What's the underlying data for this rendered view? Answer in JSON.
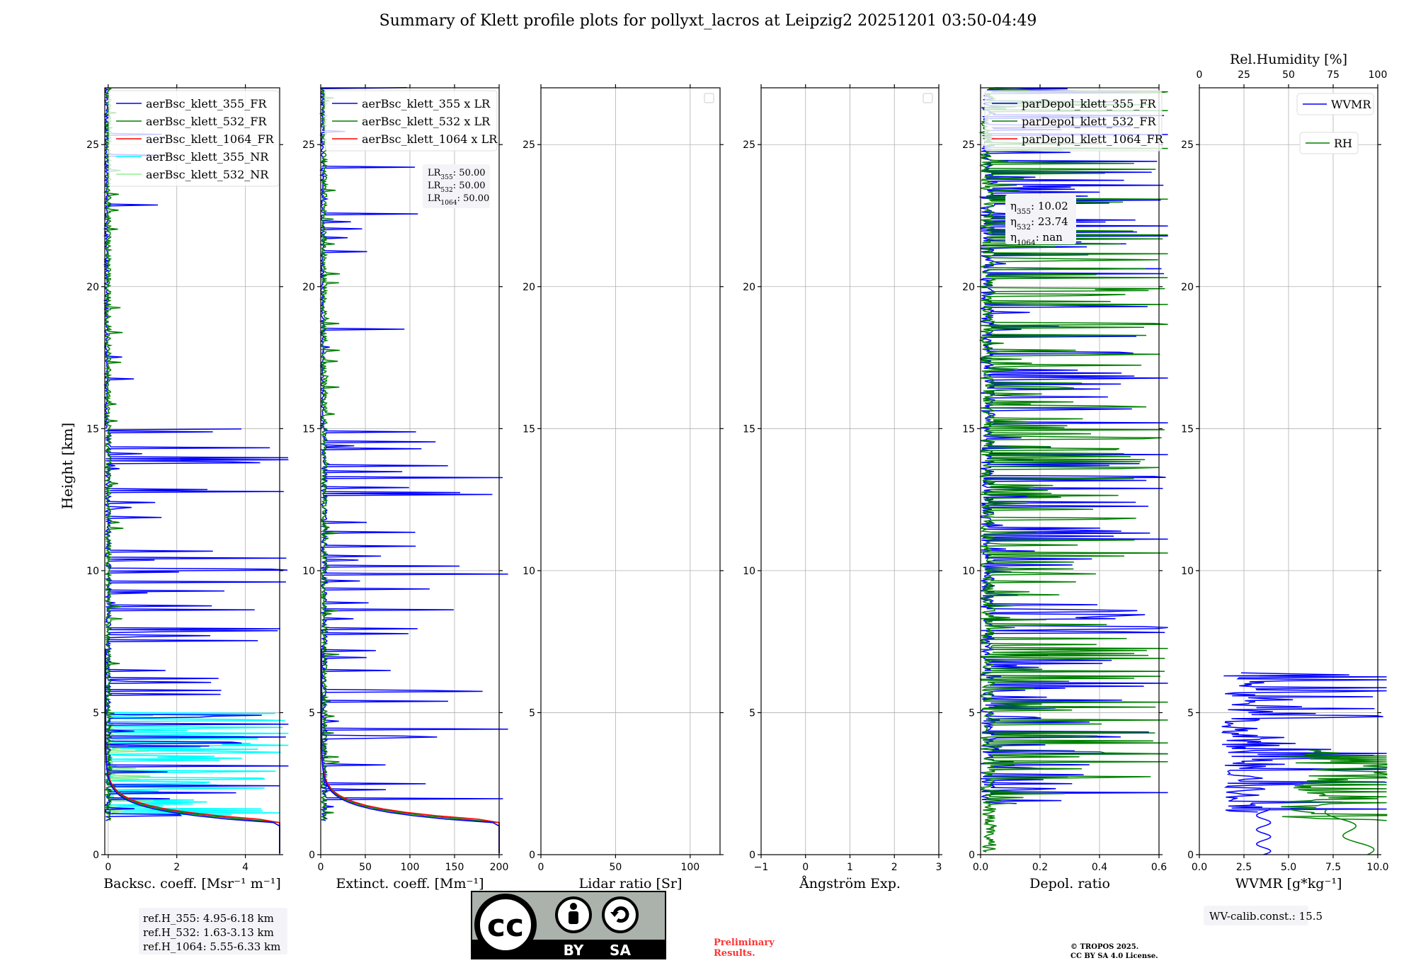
{
  "title": "Summary of Klett profile plots for pollyxt_lacros at Leipzig2 20251201 03:50-04:49",
  "ylabel": "Height [km]",
  "colors": {
    "c355": "#0000ff",
    "c532": "#008000",
    "c1064": "#ff0000",
    "c355nr": "#00ffff",
    "c532nr": "#90ee90",
    "grid": "#b0b0b0"
  },
  "chart_data": [
    {
      "type": "line",
      "id": "bsc",
      "xlabel": "Backsc. coeff. [Msr⁻¹ m⁻¹]",
      "xlim": [
        -0.1,
        5
      ],
      "ylim": [
        0,
        27
      ],
      "xticks": [
        0,
        2,
        4
      ],
      "yticks": [
        0,
        5,
        10,
        15,
        20,
        25
      ],
      "legend_position": "top-left",
      "series": [
        {
          "name": "aerBsc_klett_355_FR",
          "color": "c355"
        },
        {
          "name": "aerBsc_klett_532_FR",
          "color": "c532"
        },
        {
          "name": "aerBsc_klett_1064_FR",
          "color": "c1064"
        },
        {
          "name": "aerBsc_klett_355_NR",
          "color": "c355nr"
        },
        {
          "name": "aerBsc_klett_532_NR",
          "color": "c532nr"
        }
      ]
    },
    {
      "type": "line",
      "id": "ext",
      "xlabel": "Extinct. coeff. [Mm⁻¹]",
      "xlim": [
        0,
        200
      ],
      "ylim": [
        0,
        27
      ],
      "xticks": [
        0,
        50,
        100,
        150,
        200
      ],
      "yticks": [
        0,
        5,
        10,
        15,
        20,
        25
      ],
      "legend_position": "top-left",
      "series": [
        {
          "name": "aerBsc_klett_355 x LR",
          "color": "c355"
        },
        {
          "name": "aerBsc_klett_532 x LR",
          "color": "c532"
        },
        {
          "name": "aerBsc_klett_1064 x LR",
          "color": "c1064"
        }
      ]
    },
    {
      "type": "line",
      "id": "lr",
      "xlabel": "Lidar ratio [Sr]",
      "xlim": [
        0,
        120
      ],
      "ylim": [
        0,
        27
      ],
      "xticks": [
        0,
        50,
        100
      ],
      "yticks": [
        0,
        5,
        10,
        15,
        20,
        25
      ],
      "series": []
    },
    {
      "type": "line",
      "id": "ang",
      "xlabel": "Ångström Exp.",
      "xlim": [
        -1,
        3
      ],
      "ylim": [
        0,
        27
      ],
      "xticks": [
        -1,
        0,
        1,
        2,
        3
      ],
      "xtick_labels": [
        "−1",
        "0",
        "1",
        "2",
        "3"
      ],
      "yticks": [
        0,
        5,
        10,
        15,
        20,
        25
      ],
      "series": []
    },
    {
      "type": "line",
      "id": "dep",
      "xlabel": "Depol. ratio",
      "xlim": [
        0,
        0.6
      ],
      "ylim": [
        0,
        27
      ],
      "xticks": [
        0,
        0.2,
        0.4,
        0.6
      ],
      "xtick_labels": [
        "0.0",
        "0.2",
        "0.4",
        "0.6"
      ],
      "yticks": [
        0,
        5,
        10,
        15,
        20,
        25
      ],
      "legend_position": "top-left",
      "series": [
        {
          "name": "parDepol_klett_355_FR",
          "color": "c355"
        },
        {
          "name": "parDepol_klett_532_FR",
          "color": "c532"
        },
        {
          "name": "parDepol_klett_1064_FR",
          "color": "c1064"
        }
      ]
    },
    {
      "type": "line",
      "id": "wv",
      "xlabel": "WVMR [g*kg⁻¹]",
      "xlim": [
        0,
        10
      ],
      "ylim": [
        0,
        27
      ],
      "xticks": [
        0,
        2.5,
        5,
        7.5,
        10
      ],
      "xtick_labels": [
        "0.0",
        "2.5",
        "5.0",
        "7.5",
        "10.0"
      ],
      "yticks": [
        0,
        5,
        10,
        15,
        20,
        25
      ],
      "x2label": "Rel.Humidity [%]",
      "x2lim": [
        0,
        100
      ],
      "x2ticks": [
        0,
        25,
        50,
        75,
        100
      ],
      "series": [
        {
          "name": "WVMR",
          "color": "c355"
        },
        {
          "name": "RH",
          "color": "c532"
        }
      ]
    }
  ],
  "annotations": {
    "lr_lines": [
      {
        "pre": "LR",
        "sub": "355",
        "post": ": 50.00"
      },
      {
        "pre": "LR",
        "sub": "532",
        "post": ": 50.00"
      },
      {
        "pre": "LR",
        "sub": "1064",
        "post": ": 50.00"
      }
    ],
    "eta_lines": [
      {
        "pre": "η",
        "sub": "355",
        "post": ": 10.02"
      },
      {
        "pre": "η",
        "sub": "532",
        "post": ": 23.74"
      },
      {
        "pre": "η",
        "sub": "1064",
        "post": ": nan"
      }
    ],
    "ref_lines": [
      "ref.H_355: 4.95-6.18 km",
      "ref.H_532: 1.63-3.13 km",
      "ref.H_1064: 5.55-6.33 km"
    ],
    "wv_calib": "WV-calib.const.: 15.5",
    "preliminary": [
      "Preliminary",
      "Results."
    ],
    "copyright": [
      "© TROPOS 2025.",
      "CC BY SA 4.0 License."
    ],
    "license_badge": {
      "by": "BY",
      "sa": "SA",
      "cc": "cc"
    }
  }
}
